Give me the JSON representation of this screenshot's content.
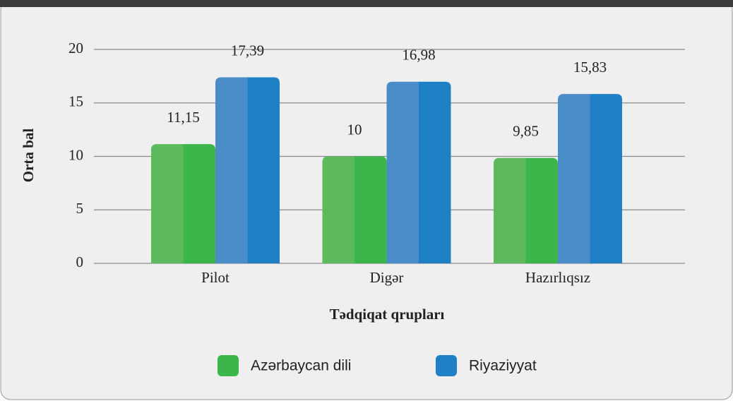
{
  "chart_data": {
    "type": "bar",
    "categories": [
      "Pilot",
      "Digər",
      "Hazırlıqsız"
    ],
    "series": [
      {
        "name": "Azərbaycan dili",
        "color": "#3cb54a",
        "values": [
          11.15,
          10,
          9.85
        ],
        "value_labels": [
          "11,15",
          "10",
          "9,85"
        ]
      },
      {
        "name": "Riyaziyyat",
        "color": "#1f80c6",
        "values": [
          17.39,
          16.98,
          15.83
        ],
        "value_labels": [
          "17,39",
          "16,98",
          "15,83"
        ]
      }
    ],
    "xlabel": "Tədqiqat qrupları",
    "ylabel": "Orta bal",
    "ylim": [
      0,
      20
    ],
    "yticks": [
      0,
      5,
      10,
      15,
      20
    ],
    "grid": true,
    "legend": "bottom"
  }
}
